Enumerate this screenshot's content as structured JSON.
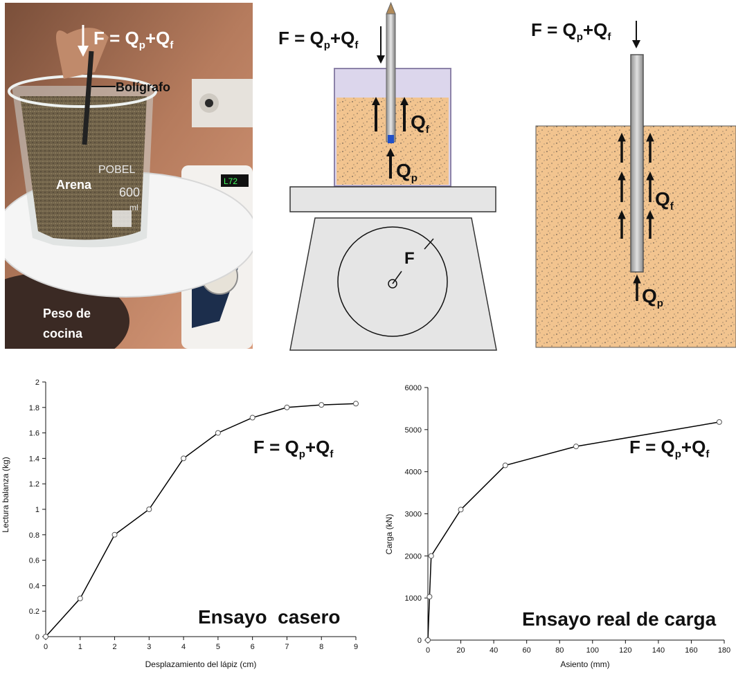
{
  "formula": {
    "main": "F = Q",
    "sub_p": "p",
    "plus": "+Q",
    "sub_f": "f"
  },
  "photo": {
    "labels": {
      "pen": "Bolígrafo",
      "sand": "Arena",
      "scale_line1": "Peso de",
      "scale_line2": "cocina"
    },
    "beaker_text": {
      "brand": "POBEL",
      "volume": "600",
      "unit": "ml"
    }
  },
  "diagram_scale": {
    "label_qf": "Q",
    "label_qf_sub": "f",
    "label_qp": "Q",
    "label_qp_sub": "p",
    "dial_label": "F"
  },
  "diagram_pile": {
    "label_qf": "Q",
    "label_qf_sub": "f",
    "label_qp": "Q",
    "label_qp_sub": "p"
  },
  "colors": {
    "sand": "#f2c48f",
    "container": "#dcd6ec",
    "pile": "#b8b8b8",
    "curve": "#000000"
  },
  "chart_data": [
    {
      "type": "line",
      "title": "Ensayo  casero",
      "xlabel": "Desplazamiento del lápiz (cm)",
      "ylabel": "Lectura balanza (kg)",
      "annotation": "F = Qp+Qf",
      "xlim": [
        0,
        9
      ],
      "ylim": [
        0,
        2
      ],
      "xticks": [
        "0",
        "1",
        "2",
        "3",
        "4",
        "5",
        "6",
        "7",
        "8",
        "9"
      ],
      "yticks": [
        "0",
        "0.2",
        "0.4",
        "0.6",
        "0.8",
        "1",
        "1.2",
        "1.4",
        "1.6",
        "1.8",
        "2"
      ],
      "x": [
        0,
        1,
        2,
        3,
        4,
        5,
        6,
        7,
        8,
        9
      ],
      "y": [
        0,
        0.3,
        0.8,
        1.0,
        1.4,
        1.6,
        1.72,
        1.8,
        1.82,
        1.83
      ],
      "grid": false
    },
    {
      "type": "line",
      "title": "Ensayo real de carga",
      "xlabel": "Asiento (mm)",
      "ylabel": "Carga (kN)",
      "annotation": "F = Qp+Qf",
      "xlim": [
        0,
        180
      ],
      "ylim": [
        0,
        6000
      ],
      "xticks": [
        "0",
        "20",
        "40",
        "60",
        "80",
        "100",
        "120",
        "140",
        "160",
        "180"
      ],
      "yticks": [
        "0",
        "1000",
        "2000",
        "3000",
        "4000",
        "5000",
        "6000"
      ],
      "x": [
        0,
        1,
        2,
        20,
        47,
        90,
        177
      ],
      "y": [
        0,
        1030,
        2000,
        3100,
        4150,
        4600,
        5180
      ],
      "grid": false
    }
  ]
}
